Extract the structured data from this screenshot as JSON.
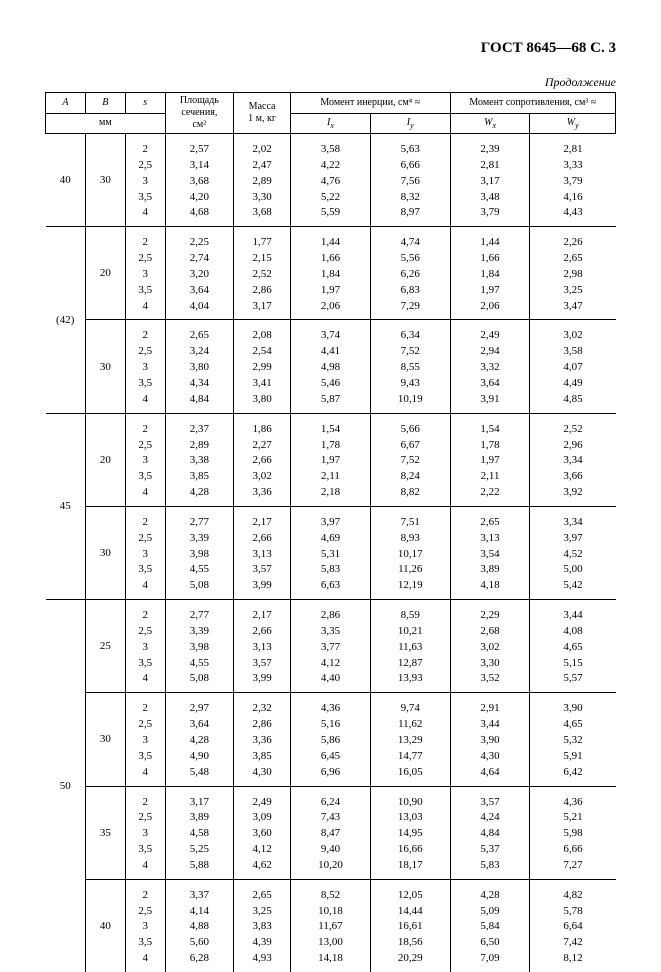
{
  "meta": {
    "standard_header": "ГОСТ  8645—68 С. 3",
    "continuation": "Продолжение"
  },
  "headers": {
    "col_A": "A",
    "col_B": "B",
    "col_s": "s",
    "col_area_l1": "Площадь",
    "col_area_l2": "сечения,",
    "col_area_unit": "см²",
    "col_mass_l1": "Масса",
    "col_mass_l2": "1 м, кг",
    "moment_inertia": "Момент инерции, см⁴ ≈",
    "moment_resist": "Момент сопротивления, см³ ≈",
    "mm": "мм",
    "Ix": "Iₓ",
    "Iy": "Iᵧ",
    "Wx": "Wₓ",
    "Wy": "Wᵧ"
  },
  "style": {
    "font_family": "Times New Roman",
    "bg": "#ffffff",
    "text": "#000000",
    "border": "#000000",
    "header_fontsize": 10,
    "body_fontsize": 11,
    "title_fontsize": 15
  },
  "blocks": [
    {
      "A": "40",
      "groups": [
        {
          "B": "30",
          "rows": [
            [
              "2",
              "2,57",
              "2,02",
              "3,58",
              "5,63",
              "2,39",
              "2,81"
            ],
            [
              "2,5",
              "3,14",
              "2,47",
              "4,22",
              "6,66",
              "2,81",
              "3,33"
            ],
            [
              "3",
              "3,68",
              "2,89",
              "4,76",
              "7,56",
              "3,17",
              "3,79"
            ],
            [
              "3,5",
              "4,20",
              "3,30",
              "5,22",
              "8,32",
              "3,48",
              "4,16"
            ],
            [
              "4",
              "4,68",
              "3,68",
              "5,59",
              "8,97",
              "3,79",
              "4,43"
            ]
          ]
        }
      ]
    },
    {
      "A": "(42)",
      "groups": [
        {
          "B": "20",
          "rows": [
            [
              "2",
              "2,25",
              "1,77",
              "1,44",
              "4,74",
              "1,44",
              "2,26"
            ],
            [
              "2,5",
              "2,74",
              "2,15",
              "1,66",
              "5,56",
              "1,66",
              "2,65"
            ],
            [
              "3",
              "3,20",
              "2,52",
              "1,84",
              "6,26",
              "1,84",
              "2,98"
            ],
            [
              "3,5",
              "3,64",
              "2,86",
              "1,97",
              "6,83",
              "1,97",
              "3,25"
            ],
            [
              "4",
              "4,04",
              "3,17",
              "2,06",
              "7,29",
              "2,06",
              "3,47"
            ]
          ]
        },
        {
          "B": "30",
          "rows": [
            [
              "2",
              "2,65",
              "2,08",
              "3,74",
              "6,34",
              "2,49",
              "3,02"
            ],
            [
              "2,5",
              "3,24",
              "2,54",
              "4,41",
              "7,52",
              "2,94",
              "3,58"
            ],
            [
              "3",
              "3,80",
              "2,99",
              "4,98",
              "8,55",
              "3,32",
              "4,07"
            ],
            [
              "3,5",
              "4,34",
              "3,41",
              "5,46",
              "9,43",
              "3,64",
              "4,49"
            ],
            [
              "4",
              "4,84",
              "3,80",
              "5,87",
              "10,19",
              "3,91",
              "4,85"
            ]
          ]
        }
      ]
    },
    {
      "A": "45",
      "groups": [
        {
          "B": "20",
          "rows": [
            [
              "2",
              "2,37",
              "1,86",
              "1,54",
              "5,66",
              "1,54",
              "2,52"
            ],
            [
              "2,5",
              "2,89",
              "2,27",
              "1,78",
              "6,67",
              "1,78",
              "2,96"
            ],
            [
              "3",
              "3,38",
              "2,66",
              "1,97",
              "7,52",
              "1,97",
              "3,34"
            ],
            [
              "3,5",
              "3,85",
              "3,02",
              "2,11",
              "8,24",
              "2,11",
              "3,66"
            ],
            [
              "4",
              "4,28",
              "3,36",
              "2,18",
              "8,82",
              "2,22",
              "3,92"
            ]
          ]
        },
        {
          "B": "30",
          "rows": [
            [
              "2",
              "2,77",
              "2,17",
              "3,97",
              "7,51",
              "2,65",
              "3,34"
            ],
            [
              "2,5",
              "3,39",
              "2,66",
              "4,69",
              "8,93",
              "3,13",
              "3,97"
            ],
            [
              "3",
              "3,98",
              "3,13",
              "5,31",
              "10,17",
              "3,54",
              "4,52"
            ],
            [
              "3,5",
              "4,55",
              "3,57",
              "5,83",
              "11,26",
              "3,89",
              "5,00"
            ],
            [
              "4",
              "5,08",
              "3,99",
              "6,63",
              "12,19",
              "4,18",
              "5,42"
            ]
          ]
        }
      ]
    },
    {
      "A": "50",
      "groups": [
        {
          "B": "25",
          "rows": [
            [
              "2",
              "2,77",
              "2,17",
              "2,86",
              "8,59",
              "2,29",
              "3,44"
            ],
            [
              "2,5",
              "3,39",
              "2,66",
              "3,35",
              "10,21",
              "2,68",
              "4,08"
            ],
            [
              "3",
              "3,98",
              "3,13",
              "3,77",
              "11,63",
              "3,02",
              "4,65"
            ],
            [
              "3,5",
              "4,55",
              "3,57",
              "4,12",
              "12,87",
              "3,30",
              "5,15"
            ],
            [
              "4",
              "5,08",
              "3,99",
              "4,40",
              "13,93",
              "3,52",
              "5,57"
            ]
          ]
        },
        {
          "B": "30",
          "rows": [
            [
              "2",
              "2,97",
              "2,32",
              "4,36",
              "9,74",
              "2,91",
              "3,90"
            ],
            [
              "2,5",
              "3,64",
              "2,86",
              "5,16",
              "11,62",
              "3,44",
              "4,65"
            ],
            [
              "3",
              "4,28",
              "3,36",
              "5,86",
              "13,29",
              "3,90",
              "5,32"
            ],
            [
              "3,5",
              "4,90",
              "3,85",
              "6,45",
              "14,77",
              "4,30",
              "5,91"
            ],
            [
              "4",
              "5,48",
              "4,30",
              "6,96",
              "16,05",
              "4,64",
              "6,42"
            ]
          ]
        },
        {
          "B": "35",
          "rows": [
            [
              "2",
              "3,17",
              "2,49",
              "6,24",
              "10,90",
              "3,57",
              "4,36"
            ],
            [
              "2,5",
              "3,89",
              "3,09",
              "7,43",
              "13,03",
              "4,24",
              "5,21"
            ],
            [
              "3",
              "4,58",
              "3,60",
              "8,47",
              "14,95",
              "4,84",
              "5,98"
            ],
            [
              "3,5",
              "5,25",
              "4,12",
              "9,40",
              "16,66",
              "5,37",
              "6,66"
            ],
            [
              "4",
              "5,88",
              "4,62",
              "10,20",
              "18,17",
              "5,83",
              "7,27"
            ]
          ]
        },
        {
          "B": "40",
          "rows": [
            [
              "2",
              "3,37",
              "2,65",
              "8,52",
              "12,05",
              "4,28",
              "4,82"
            ],
            [
              "2,5",
              "4,14",
              "3,25",
              "10,18",
              "14,44",
              "5,09",
              "5,78"
            ],
            [
              "3",
              "4,88",
              "3,83",
              "11,67",
              "16,61",
              "5,84",
              "6,64"
            ],
            [
              "3,5",
              "5,60",
              "4,39",
              "13,00",
              "18,56",
              "6,50",
              "7,42"
            ],
            [
              "4",
              "6,28",
              "4,93",
              "14,18",
              "20,29",
              "7,09",
              "8,12"
            ]
          ]
        }
      ]
    }
  ]
}
